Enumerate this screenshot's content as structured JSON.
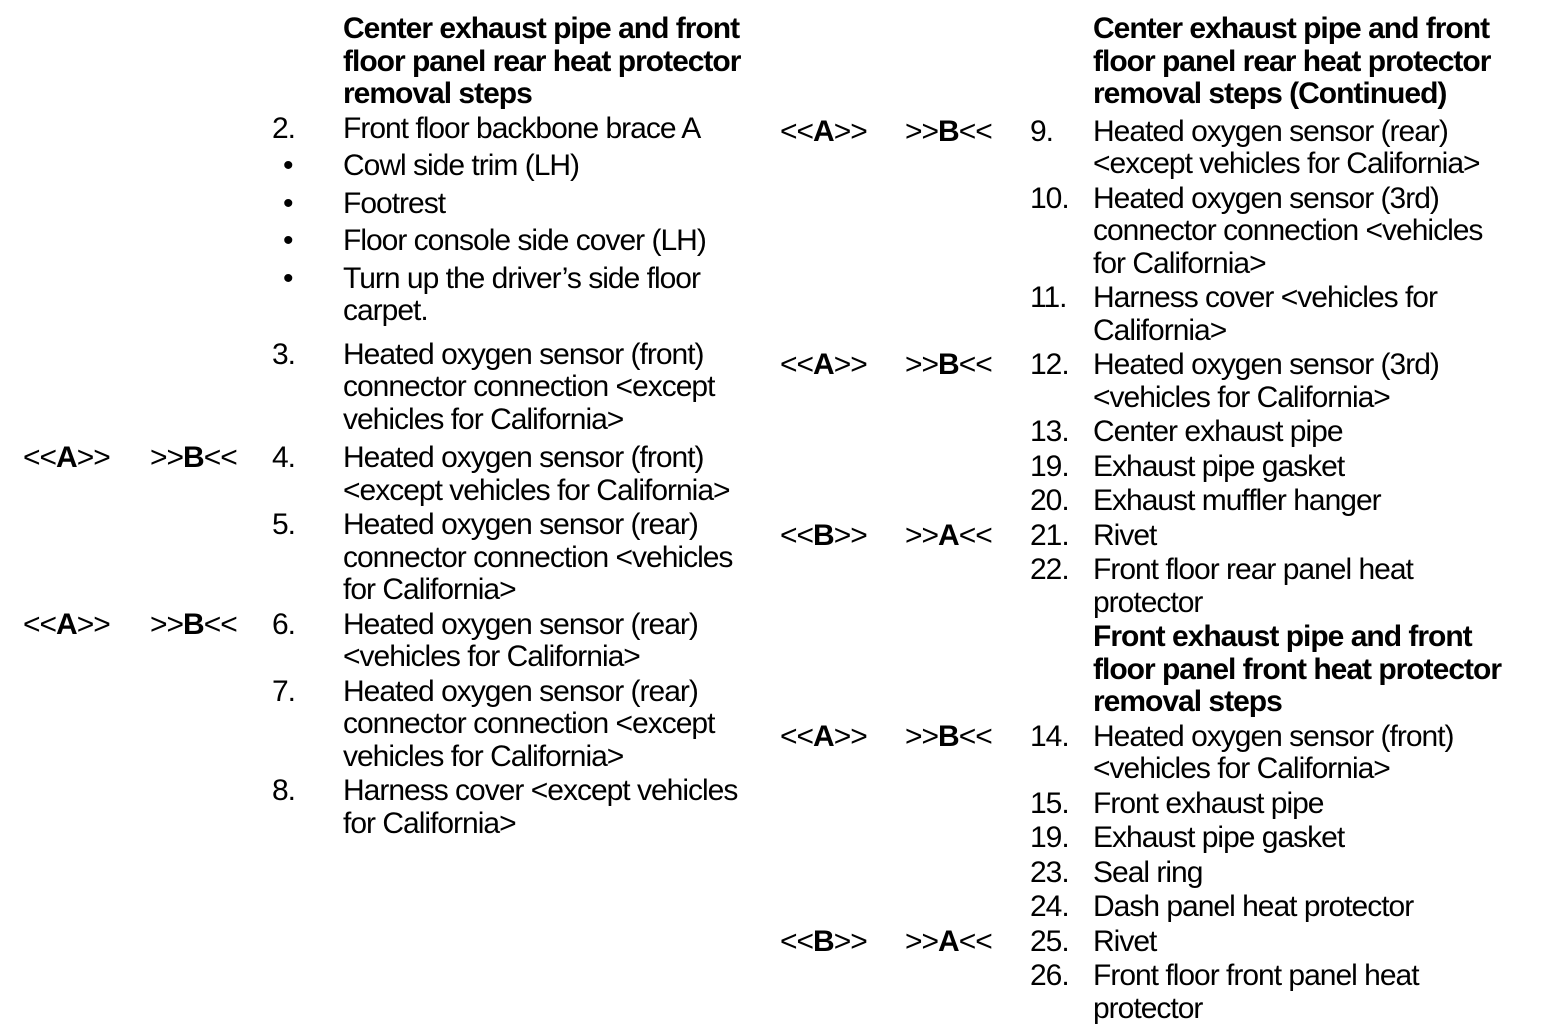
{
  "page": {
    "background_color": "#ffffff",
    "text_color": "#000000"
  },
  "columns": [
    {
      "side": "left",
      "rows": [
        {
          "type": "heading",
          "marker_a": "",
          "marker_b": "",
          "num": "",
          "text": "Center exhaust pipe and front\nfloor panel rear heat protector\nremoval steps"
        },
        {
          "type": "step",
          "marker_a": "",
          "marker_b": "",
          "num": "2.",
          "text": "Front floor backbone brace A"
        },
        {
          "type": "bullet",
          "marker_a": "",
          "marker_b": "",
          "num": "•",
          "text": "Cowl side trim (LH)"
        },
        {
          "type": "bullet",
          "marker_a": "",
          "marker_b": "",
          "num": "•",
          "text": "Footrest"
        },
        {
          "type": "bullet",
          "marker_a": "",
          "marker_b": "",
          "num": "•",
          "text": "Floor console side cover (LH)"
        },
        {
          "type": "bullet",
          "marker_a": "",
          "marker_b": "",
          "num": "•",
          "text": "Turn up the driver’s side floor\ncarpet."
        },
        {
          "type": "step",
          "marker_a": "",
          "marker_b": "",
          "num": "3.",
          "text": "Heated oxygen sensor (front)\nconnector connection <except\nvehicles for California>"
        },
        {
          "type": "step",
          "marker_a": "<<A>>",
          "marker_b": ">>B<<",
          "num": "4.",
          "text": "Heated oxygen sensor (front)\n<except vehicles for California>"
        },
        {
          "type": "step",
          "marker_a": "",
          "marker_b": "",
          "num": "5.",
          "text": "Heated oxygen sensor (rear)\nconnector connection <vehicles\nfor California>"
        },
        {
          "type": "step",
          "marker_a": "<<A>>",
          "marker_b": ">>B<<",
          "num": "6.",
          "text": "Heated oxygen sensor (rear)\n<vehicles for California>"
        },
        {
          "type": "step",
          "marker_a": "",
          "marker_b": "",
          "num": "7.",
          "text": "Heated oxygen sensor (rear)\nconnector connection <except\nvehicles for California>"
        },
        {
          "type": "step",
          "marker_a": "",
          "marker_b": "",
          "num": "8.",
          "text": "Harness cover <except vehicles\nfor California>"
        }
      ]
    },
    {
      "side": "right",
      "rows": [
        {
          "type": "heading",
          "marker_a": "",
          "marker_b": "",
          "num": "",
          "text": "Center exhaust pipe and front\nfloor panel rear heat protector\nremoval steps (Continued)"
        },
        {
          "type": "step",
          "marker_a": "<<A>>",
          "marker_b": ">>B<<",
          "num": "9.",
          "text": "Heated oxygen sensor (rear)\n<except vehicles for California>"
        },
        {
          "type": "step",
          "marker_a": "",
          "marker_b": "",
          "num": "10.",
          "text": "Heated oxygen sensor (3rd)\nconnector connection <vehicles\nfor California>"
        },
        {
          "type": "step",
          "marker_a": "",
          "marker_b": "",
          "num": "11.",
          "text": "Harness cover <vehicles for\nCalifornia>"
        },
        {
          "type": "step",
          "marker_a": "<<A>>",
          "marker_b": ">>B<<",
          "num": "12.",
          "text": "Heated oxygen sensor (3rd)\n<vehicles for California>"
        },
        {
          "type": "step",
          "marker_a": "",
          "marker_b": "",
          "num": "13.",
          "text": "Center exhaust pipe"
        },
        {
          "type": "step",
          "marker_a": "",
          "marker_b": "",
          "num": "19.",
          "text": "Exhaust pipe gasket"
        },
        {
          "type": "step",
          "marker_a": "",
          "marker_b": "",
          "num": "20.",
          "text": "Exhaust muffler hanger"
        },
        {
          "type": "step",
          "marker_a": "<<B>>",
          "marker_b": ">>A<<",
          "num": "21.",
          "text": "Rivet"
        },
        {
          "type": "step",
          "marker_a": "",
          "marker_b": "",
          "num": "22.",
          "text": "Front floor rear panel heat\nprotector"
        },
        {
          "type": "heading",
          "marker_a": "",
          "marker_b": "",
          "num": "",
          "text": "Front exhaust pipe and front\nfloor panel front heat protector\nremoval steps"
        },
        {
          "type": "step",
          "marker_a": "<<A>>",
          "marker_b": ">>B<<",
          "num": "14.",
          "text": "Heated oxygen sensor (front)\n<vehicles for California>"
        },
        {
          "type": "step",
          "marker_a": "",
          "marker_b": "",
          "num": "15.",
          "text": "Front exhaust pipe"
        },
        {
          "type": "step",
          "marker_a": "",
          "marker_b": "",
          "num": "19.",
          "text": "Exhaust pipe gasket"
        },
        {
          "type": "step",
          "marker_a": "",
          "marker_b": "",
          "num": "23.",
          "text": "Seal ring"
        },
        {
          "type": "step",
          "marker_a": "",
          "marker_b": "",
          "num": "24.",
          "text": "Dash panel heat protector"
        },
        {
          "type": "step",
          "marker_a": "<<B>>",
          "marker_b": ">>A<<",
          "num": "25.",
          "text": "Rivet"
        },
        {
          "type": "step",
          "marker_a": "",
          "marker_b": "",
          "num": "26.",
          "text": "Front floor front panel heat\nprotector"
        }
      ]
    }
  ]
}
